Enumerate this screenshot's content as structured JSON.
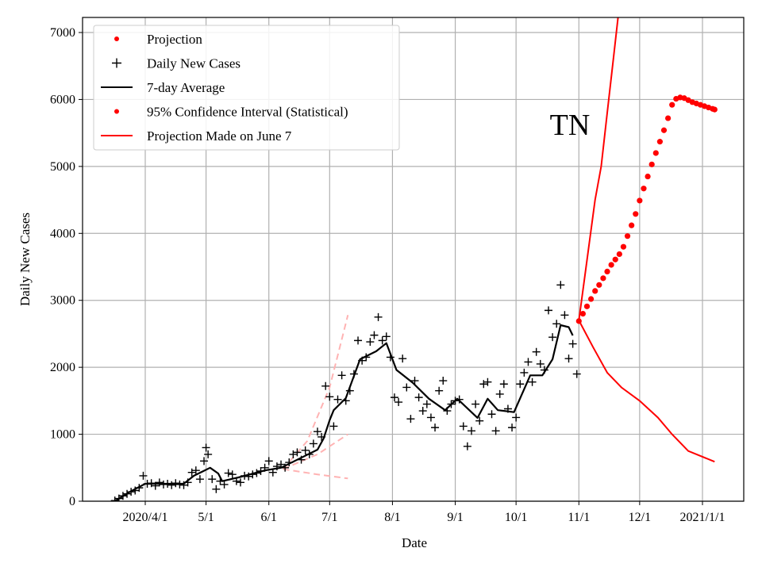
{
  "chart_data": {
    "type": "line",
    "annotation": "TN",
    "xlabel": "Date",
    "ylabel": "Daily New Cases",
    "xlim": [
      "2020-03-04",
      "2021-01-21"
    ],
    "ylim": [
      0,
      7230
    ],
    "grid": true,
    "legend_position": "top-left",
    "x_ticks": [
      {
        "date": "2020-04-01",
        "label": "2020/4/1"
      },
      {
        "date": "2020-05-01",
        "label": "5/1"
      },
      {
        "date": "2020-06-01",
        "label": "6/1"
      },
      {
        "date": "2020-07-01",
        "label": "7/1"
      },
      {
        "date": "2020-08-01",
        "label": "8/1"
      },
      {
        "date": "2020-09-01",
        "label": "9/1"
      },
      {
        "date": "2020-10-01",
        "label": "10/1"
      },
      {
        "date": "2020-11-01",
        "label": "11/1"
      },
      {
        "date": "2020-12-01",
        "label": "12/1"
      },
      {
        "date": "2021-01-01",
        "label": "2021/1/1"
      }
    ],
    "y_ticks": [
      0,
      1000,
      2000,
      3000,
      4000,
      5000,
      6000,
      7000
    ],
    "colors": {
      "projection": "#ff0000",
      "cases": "#000000",
      "average": "#000000",
      "ci": "#ff0000",
      "june7": "#ffb3b3"
    },
    "legend": [
      {
        "label": "Projection",
        "style": "red-dot"
      },
      {
        "label": "Daily New Cases",
        "style": "black-plus"
      },
      {
        "label": "7-day Average",
        "style": "black-line"
      },
      {
        "label": "95% Confidence Interval (Statistical)",
        "style": "red-dot"
      },
      {
        "label": "Projection Made on June 7",
        "style": "red-line"
      }
    ],
    "series": {
      "daily_new_cases": [
        [
          "2020-03-17",
          10
        ],
        [
          "2020-03-19",
          40
        ],
        [
          "2020-03-21",
          80
        ],
        [
          "2020-03-23",
          110
        ],
        [
          "2020-03-25",
          140
        ],
        [
          "2020-03-27",
          160
        ],
        [
          "2020-03-29",
          200
        ],
        [
          "2020-03-31",
          380
        ],
        [
          "2020-04-02",
          260
        ],
        [
          "2020-04-04",
          270
        ],
        [
          "2020-04-06",
          230
        ],
        [
          "2020-04-08",
          280
        ],
        [
          "2020-04-10",
          250
        ],
        [
          "2020-04-12",
          260
        ],
        [
          "2020-04-14",
          240
        ],
        [
          "2020-04-16",
          270
        ],
        [
          "2020-04-18",
          250
        ],
        [
          "2020-04-20",
          240
        ],
        [
          "2020-04-22",
          280
        ],
        [
          "2020-04-24",
          430
        ],
        [
          "2020-04-26",
          460
        ],
        [
          "2020-04-28",
          330
        ],
        [
          "2020-04-30",
          600
        ],
        [
          "2020-05-01",
          800
        ],
        [
          "2020-05-02",
          700
        ],
        [
          "2020-05-04",
          330
        ],
        [
          "2020-05-06",
          180
        ],
        [
          "2020-05-08",
          300
        ],
        [
          "2020-05-10",
          250
        ],
        [
          "2020-05-12",
          420
        ],
        [
          "2020-05-14",
          400
        ],
        [
          "2020-05-16",
          300
        ],
        [
          "2020-05-18",
          280
        ],
        [
          "2020-05-20",
          380
        ],
        [
          "2020-05-22",
          370
        ],
        [
          "2020-05-24",
          400
        ],
        [
          "2020-05-26",
          420
        ],
        [
          "2020-05-28",
          450
        ],
        [
          "2020-05-30",
          500
        ],
        [
          "2020-06-01",
          600
        ],
        [
          "2020-06-03",
          430
        ],
        [
          "2020-06-05",
          520
        ],
        [
          "2020-06-07",
          550
        ],
        [
          "2020-06-09",
          500
        ],
        [
          "2020-06-11",
          580
        ],
        [
          "2020-06-13",
          700
        ],
        [
          "2020-06-15",
          730
        ],
        [
          "2020-06-17",
          620
        ],
        [
          "2020-06-19",
          760
        ],
        [
          "2020-06-21",
          700
        ],
        [
          "2020-06-23",
          860
        ],
        [
          "2020-06-25",
          1040
        ],
        [
          "2020-06-27",
          960
        ],
        [
          "2020-06-29",
          1720
        ],
        [
          "2020-07-01",
          1560
        ],
        [
          "2020-07-03",
          1120
        ],
        [
          "2020-07-05",
          1520
        ],
        [
          "2020-07-07",
          1880
        ],
        [
          "2020-07-09",
          1500
        ],
        [
          "2020-07-11",
          1650
        ],
        [
          "2020-07-13",
          1900
        ],
        [
          "2020-07-15",
          2400
        ],
        [
          "2020-07-17",
          2100
        ],
        [
          "2020-07-19",
          2150
        ],
        [
          "2020-07-21",
          2380
        ],
        [
          "2020-07-23",
          2480
        ],
        [
          "2020-07-25",
          2750
        ],
        [
          "2020-07-27",
          2400
        ],
        [
          "2020-07-29",
          2460
        ],
        [
          "2020-07-31",
          2150
        ],
        [
          "2020-08-02",
          1550
        ],
        [
          "2020-08-04",
          1480
        ],
        [
          "2020-08-06",
          2130
        ],
        [
          "2020-08-08",
          1700
        ],
        [
          "2020-08-10",
          1230
        ],
        [
          "2020-08-12",
          1800
        ],
        [
          "2020-08-14",
          1550
        ],
        [
          "2020-08-16",
          1350
        ],
        [
          "2020-08-18",
          1450
        ],
        [
          "2020-08-20",
          1250
        ],
        [
          "2020-08-22",
          1100
        ],
        [
          "2020-08-24",
          1650
        ],
        [
          "2020-08-26",
          1800
        ],
        [
          "2020-08-28",
          1350
        ],
        [
          "2020-08-30",
          1450
        ],
        [
          "2020-09-01",
          1500
        ],
        [
          "2020-09-03",
          1520
        ],
        [
          "2020-09-05",
          1120
        ],
        [
          "2020-09-07",
          820
        ],
        [
          "2020-09-09",
          1050
        ],
        [
          "2020-09-11",
          1450
        ],
        [
          "2020-09-13",
          1200
        ],
        [
          "2020-09-15",
          1750
        ],
        [
          "2020-09-17",
          1780
        ],
        [
          "2020-09-19",
          1300
        ],
        [
          "2020-09-21",
          1050
        ],
        [
          "2020-09-23",
          1600
        ],
        [
          "2020-09-25",
          1750
        ],
        [
          "2020-09-27",
          1380
        ],
        [
          "2020-09-29",
          1100
        ],
        [
          "2020-10-01",
          1250
        ],
        [
          "2020-10-03",
          1750
        ],
        [
          "2020-10-05",
          1920
        ],
        [
          "2020-10-07",
          2080
        ],
        [
          "2020-10-09",
          1780
        ],
        [
          "2020-10-11",
          2230
        ],
        [
          "2020-10-13",
          2050
        ],
        [
          "2020-10-15",
          1960
        ],
        [
          "2020-10-17",
          2850
        ],
        [
          "2020-10-19",
          2450
        ],
        [
          "2020-10-21",
          2650
        ],
        [
          "2020-10-23",
          3230
        ],
        [
          "2020-10-25",
          2780
        ],
        [
          "2020-10-27",
          2130
        ],
        [
          "2020-10-29",
          2350
        ],
        [
          "2020-10-31",
          1900
        ]
      ],
      "seven_day_average": [
        [
          "2020-03-17",
          0
        ],
        [
          "2020-03-25",
          150
        ],
        [
          "2020-04-01",
          260
        ],
        [
          "2020-04-10",
          260
        ],
        [
          "2020-04-20",
          260
        ],
        [
          "2020-04-25",
          380
        ],
        [
          "2020-05-03",
          500
        ],
        [
          "2020-05-07",
          415
        ],
        [
          "2020-05-09",
          300
        ],
        [
          "2020-05-17",
          355
        ],
        [
          "2020-05-30",
          460
        ],
        [
          "2020-06-07",
          500
        ],
        [
          "2020-06-25",
          770
        ],
        [
          "2020-06-28",
          935
        ],
        [
          "2020-07-01",
          1210
        ],
        [
          "2020-07-03",
          1360
        ],
        [
          "2020-07-09",
          1540
        ],
        [
          "2020-07-16",
          2120
        ],
        [
          "2020-07-24",
          2240
        ],
        [
          "2020-07-29",
          2360
        ],
        [
          "2020-08-03",
          1960
        ],
        [
          "2020-08-11",
          1770
        ],
        [
          "2020-08-19",
          1530
        ],
        [
          "2020-08-27",
          1360
        ],
        [
          "2020-09-02",
          1530
        ],
        [
          "2020-09-12",
          1245
        ],
        [
          "2020-09-17",
          1530
        ],
        [
          "2020-09-22",
          1360
        ],
        [
          "2020-09-30",
          1330
        ],
        [
          "2020-10-08",
          1880
        ],
        [
          "2020-10-14",
          1880
        ],
        [
          "2020-10-19",
          2120
        ],
        [
          "2020-10-23",
          2630
        ],
        [
          "2020-10-27",
          2600
        ],
        [
          "2020-10-29",
          2475
        ]
      ],
      "projection": [
        [
          "2020-11-01",
          2690
        ],
        [
          "2020-11-03",
          2800
        ],
        [
          "2020-11-05",
          2910
        ],
        [
          "2020-11-07",
          3020
        ],
        [
          "2020-11-09",
          3140
        ],
        [
          "2020-11-11",
          3230
        ],
        [
          "2020-11-13",
          3330
        ],
        [
          "2020-11-15",
          3430
        ],
        [
          "2020-11-17",
          3530
        ],
        [
          "2020-11-19",
          3610
        ],
        [
          "2020-11-21",
          3690
        ],
        [
          "2020-11-23",
          3800
        ],
        [
          "2020-11-25",
          3960
        ],
        [
          "2020-11-27",
          4120
        ],
        [
          "2020-11-29",
          4290
        ],
        [
          "2020-12-01",
          4490
        ],
        [
          "2020-12-03",
          4670
        ],
        [
          "2020-12-05",
          4850
        ],
        [
          "2020-12-07",
          5030
        ],
        [
          "2020-12-09",
          5200
        ],
        [
          "2020-12-11",
          5370
        ],
        [
          "2020-12-13",
          5540
        ],
        [
          "2020-12-15",
          5720
        ],
        [
          "2020-12-17",
          5920
        ],
        [
          "2020-12-19",
          6010
        ],
        [
          "2020-12-21",
          6030
        ],
        [
          "2020-12-23",
          6020
        ],
        [
          "2020-12-25",
          5990
        ],
        [
          "2020-12-27",
          5960
        ],
        [
          "2020-12-29",
          5940
        ],
        [
          "2020-12-31",
          5920
        ],
        [
          "2021-01-02",
          5900
        ],
        [
          "2021-01-04",
          5880
        ],
        [
          "2021-01-06",
          5860
        ],
        [
          "2021-01-07",
          5850
        ]
      ],
      "ci_upper": [
        [
          "2020-11-01",
          2700
        ],
        [
          "2020-11-05",
          3600
        ],
        [
          "2020-11-09",
          4500
        ],
        [
          "2020-11-12",
          5000
        ],
        [
          "2020-11-15",
          5800
        ],
        [
          "2020-11-18",
          6600
        ],
        [
          "2020-11-21",
          7400
        ]
      ],
      "ci_lower": [
        [
          "2020-11-01",
          2700
        ],
        [
          "2020-11-08",
          2300
        ],
        [
          "2020-11-15",
          1920
        ],
        [
          "2020-11-22",
          1700
        ],
        [
          "2020-12-01",
          1500
        ],
        [
          "2020-12-10",
          1250
        ],
        [
          "2020-12-17",
          1000
        ],
        [
          "2020-12-25",
          750
        ],
        [
          "2021-01-07",
          590
        ]
      ],
      "june7_projection": {
        "upper": [
          [
            "2020-06-08",
            480
          ],
          [
            "2020-06-20",
            900
          ],
          [
            "2020-07-01",
            1700
          ],
          [
            "2020-07-10",
            2780
          ]
        ],
        "middle": [
          [
            "2020-06-08",
            480
          ],
          [
            "2020-06-25",
            700
          ],
          [
            "2020-07-10",
            1000
          ]
        ],
        "lower": [
          [
            "2020-06-08",
            480
          ],
          [
            "2020-06-25",
            400
          ],
          [
            "2020-07-10",
            340
          ]
        ]
      }
    }
  }
}
